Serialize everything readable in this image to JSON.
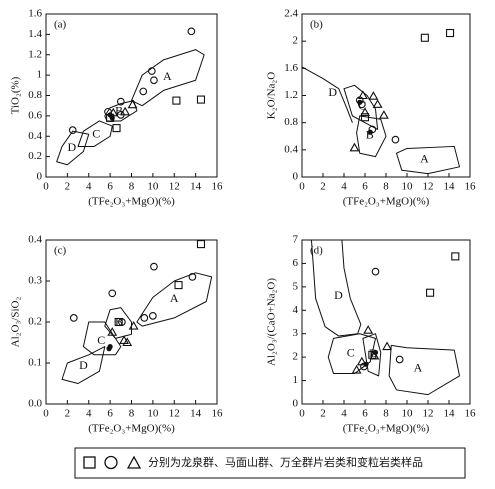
{
  "chart_data": [
    {
      "type": "scatter",
      "label": "(a)",
      "x_label": "(TFe₂O₃+MgO)(%)",
      "y_label": "TiO₂(%)",
      "xlim": [
        0,
        16
      ],
      "ylim": [
        0,
        1.6
      ],
      "xticks": [
        0,
        2,
        4,
        6,
        8,
        10,
        12,
        14,
        16
      ],
      "yticks": [
        0,
        0.2,
        0.4,
        0.6,
        0.8,
        1,
        1.2,
        1.4,
        1.6
      ],
      "fields": [
        {
          "label": "A",
          "x": [
            8,
            9,
            11,
            14,
            14.8,
            14,
            11,
            9
          ],
          "y": [
            0.75,
            1.0,
            1.15,
            1.25,
            1.2,
            0.95,
            0.85,
            0.7
          ]
        },
        {
          "label": "B",
          "x": [
            5.5,
            6,
            7,
            8.2,
            8.5,
            7,
            5.7
          ],
          "y": [
            0.6,
            0.68,
            0.72,
            0.75,
            0.65,
            0.55,
            0.55
          ]
        },
        {
          "label": "C",
          "x": [
            3,
            3.5,
            5,
            6.2,
            6,
            4.5
          ],
          "y": [
            0.3,
            0.45,
            0.55,
            0.5,
            0.4,
            0.3
          ]
        },
        {
          "label": "D",
          "x": [
            1,
            1.5,
            2.5,
            4,
            3.5,
            2
          ],
          "y": [
            0.15,
            0.3,
            0.45,
            0.42,
            0.25,
            0.12
          ]
        }
      ],
      "series": [
        {
          "marker": "square",
          "color": "#111",
          "x": [
            12.2,
            14.5,
            6.6,
            6
          ],
          "y": [
            0.75,
            0.76,
            0.48,
            0.58
          ]
        },
        {
          "marker": "circle",
          "color": "#111",
          "x": [
            13.6,
            9.9,
            10.1,
            9.1,
            7,
            5.8,
            7,
            2.5
          ],
          "y": [
            1.43,
            1.04,
            0.95,
            0.84,
            0.74,
            0.64,
            0.61,
            0.46
          ]
        },
        {
          "marker": "triangle",
          "color": "#111",
          "x": [
            8.1,
            7.4,
            6.3
          ],
          "y": [
            0.71,
            0.64,
            0.63
          ]
        },
        {
          "marker": "dot",
          "color": "#111",
          "x": [
            6,
            6.2
          ],
          "y": [
            0.61,
            0.58
          ]
        }
      ]
    },
    {
      "type": "scatter",
      "label": "(b)",
      "x_label": "(TFe₂O₃+MgO)(%)",
      "y_label": "K₂O/Na₂O",
      "xlim": [
        0,
        16
      ],
      "ylim": [
        0,
        2.4
      ],
      "xticks": [
        0,
        2,
        4,
        6,
        8,
        10,
        12,
        14,
        16
      ],
      "yticks": [
        0,
        0.4,
        0.8,
        1.2,
        1.6,
        2,
        2.4
      ],
      "fields": [
        {
          "label": "A",
          "x": [
            9,
            10,
            14.5,
            15,
            12,
            9.5
          ],
          "y": [
            0.35,
            0.42,
            0.45,
            0.15,
            0.05,
            0.1
          ]
        },
        {
          "label": "B",
          "x": [
            5.2,
            5.5,
            7.5,
            8,
            7,
            5.5
          ],
          "y": [
            0.65,
            0.9,
            0.85,
            0.6,
            0.3,
            0.35
          ]
        },
        {
          "label": "C",
          "x": [
            4,
            5,
            6.2,
            7,
            7.2,
            6,
            4.8
          ],
          "y": [
            1.3,
            1.35,
            1.2,
            1.0,
            0.7,
            0.8,
            0.9
          ]
        },
        {
          "label": "D",
          "closed": false,
          "x": [
            0,
            2,
            3.5,
            4.3,
            4.8
          ],
          "y": [
            1.62,
            1.45,
            1.3,
            1.0,
            0.8
          ]
        }
      ],
      "series": [
        {
          "marker": "square",
          "color": "#111",
          "x": [
            11.7,
            14.1,
            6
          ],
          "y": [
            2.05,
            2.12,
            0.88
          ]
        },
        {
          "marker": "circle",
          "color": "#111",
          "x": [
            5.5,
            5.7,
            8.9,
            6.7
          ],
          "y": [
            1.13,
            1.07,
            0.55,
            0.7
          ]
        },
        {
          "marker": "triangle",
          "color": "#111",
          "x": [
            5.8,
            6.8,
            7.2,
            7.8,
            5,
            6
          ],
          "y": [
            1.2,
            1.19,
            1.07,
            0.91,
            0.43,
            0.95
          ]
        },
        {
          "marker": "dot",
          "color": "#111",
          "x": [
            5.5,
            6.5
          ],
          "y": [
            1.1,
            0.66
          ]
        }
      ]
    },
    {
      "type": "scatter",
      "label": "(c)",
      "x_label": "(TFe₂O₃+MgO)(%)",
      "y_label": "Al₂O₃/SiO₂",
      "xlim": [
        0,
        16
      ],
      "ylim": [
        0,
        0.4
      ],
      "xticks": [
        0,
        2,
        4,
        6,
        8,
        10,
        12,
        14,
        16
      ],
      "yticks": [
        {
          "value": 0,
          "label": "0.0"
        },
        0.1,
        0.2,
        0.3,
        0.4
      ],
      "fields": [
        {
          "label": "A",
          "x": [
            8.5,
            10,
            12,
            14,
            15.5,
            15,
            12,
            9
          ],
          "y": [
            0.2,
            0.26,
            0.3,
            0.32,
            0.31,
            0.25,
            0.21,
            0.19
          ]
        },
        {
          "label": "B",
          "x": [
            5.5,
            6,
            7,
            8,
            8,
            6.5
          ],
          "y": [
            0.19,
            0.23,
            0.235,
            0.2,
            0.17,
            0.16
          ]
        },
        {
          "label": "C",
          "x": [
            3.5,
            4,
            5.5,
            7,
            6.5,
            4.5
          ],
          "y": [
            0.14,
            0.2,
            0.2,
            0.14,
            0.12,
            0.12
          ]
        },
        {
          "label": "D",
          "x": [
            1.5,
            2,
            4,
            5.5,
            5,
            3
          ],
          "y": [
            0.06,
            0.1,
            0.12,
            0.14,
            0.08,
            0.05
          ]
        }
      ],
      "series": [
        {
          "marker": "square",
          "color": "#111",
          "x": [
            14.5,
            12.4,
            6.8
          ],
          "y": [
            0.39,
            0.29,
            0.2
          ]
        },
        {
          "marker": "circle",
          "color": "#111",
          "x": [
            10.1,
            13.7,
            6.2,
            2.6,
            10,
            9.2,
            7.1
          ],
          "y": [
            0.335,
            0.31,
            0.27,
            0.21,
            0.215,
            0.21,
            0.2
          ]
        },
        {
          "marker": "triangle",
          "color": "#111",
          "x": [
            7.3,
            7.6,
            6.2,
            8.2
          ],
          "y": [
            0.155,
            0.15,
            0.175,
            0.19
          ]
        },
        {
          "marker": "dot",
          "color": "#111",
          "x": [
            5.9,
            6
          ],
          "y": [
            0.135,
            0.14
          ]
        }
      ]
    },
    {
      "type": "scatter",
      "label": "(d)",
      "x_label": "(TFe₂O₃+MgO)(%)",
      "y_label": "Al₂O₃/(CaO+Na₂O)",
      "xlim": [
        0,
        16
      ],
      "ylim": [
        0,
        7
      ],
      "xticks": [
        0,
        2,
        4,
        6,
        8,
        10,
        12,
        14,
        16
      ],
      "yticks": [
        0,
        1,
        2,
        3,
        4,
        5,
        6,
        7
      ],
      "fields": [
        {
          "label": "A",
          "x": [
            8.5,
            10,
            14.5,
            15,
            12,
            9,
            8.3
          ],
          "y": [
            2.5,
            2.4,
            2.3,
            1.2,
            0.4,
            0.6,
            1.2
          ]
        },
        {
          "label": "B",
          "x": [
            5.8,
            7,
            7.5,
            7.3,
            6.3
          ],
          "y": [
            2.8,
            3,
            2.2,
            1.2,
            1.4
          ]
        },
        {
          "label": "C",
          "x": [
            2.5,
            3,
            5.5,
            7,
            6.5,
            5,
            3
          ],
          "y": [
            2,
            2.8,
            3.0,
            2.8,
            1.8,
            1.3,
            1.3
          ]
        },
        {
          "label": "D",
          "closed": false,
          "x": [
            0.9,
            1.3,
            2.2,
            3.5,
            5.3,
            5.6,
            4.6,
            4.0,
            3.8
          ],
          "y": [
            7,
            4.5,
            3.3,
            2.9,
            3.0,
            3.4,
            4.5,
            5.8,
            7
          ]
        }
      ],
      "series": [
        {
          "marker": "square",
          "color": "#111",
          "x": [
            14.6,
            12.2,
            6.7
          ],
          "y": [
            6.3,
            4.75,
            2.1
          ]
        },
        {
          "marker": "circle",
          "color": "#111",
          "x": [
            7,
            9.3,
            5.9
          ],
          "y": [
            5.65,
            1.9,
            1.6
          ]
        },
        {
          "marker": "triangle",
          "color": "#111",
          "x": [
            6.3,
            8.1,
            6.9,
            5.2,
            5.7
          ],
          "y": [
            3.15,
            2.45,
            2.05,
            1.45,
            1.8
          ]
        },
        {
          "marker": "dot",
          "color": "#111",
          "x": [
            6.1,
            7
          ],
          "y": [
            1.7,
            2.2
          ]
        }
      ]
    }
  ],
  "legend": {
    "text": "分别为龙泉群、马面山群、万全群片岩类和变粒岩类样品"
  }
}
